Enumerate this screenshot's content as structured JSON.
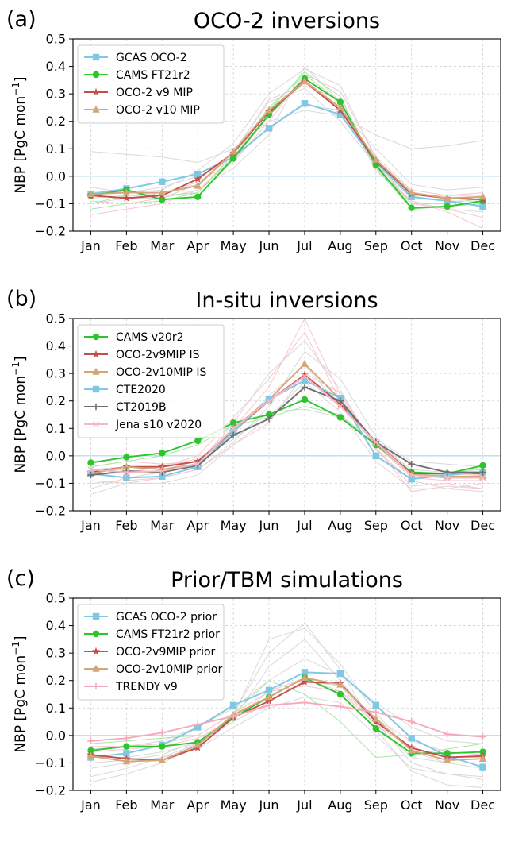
{
  "chart_data": [
    {
      "panel_label": "(a)",
      "type": "line",
      "title": "OCO-2 inversions",
      "ylabel": "NBP [PgC mon",
      "ylabel_sup": "−1",
      "ylabel_end": "]",
      "categories": [
        "Jan",
        "Feb",
        "Mar",
        "Apr",
        "May",
        "Jun",
        "Jul",
        "Aug",
        "Sep",
        "Oct",
        "Nov",
        "Dec"
      ],
      "ylim": [
        -0.2,
        0.5
      ],
      "yticks": [
        "−0.2",
        "−0.1",
        "0.0",
        "0.1",
        "0.2",
        "0.3",
        "0.4",
        "0.5"
      ],
      "grid": true,
      "legend_position": "top-left",
      "series": [
        {
          "name": "GCAS OCO-2",
          "color": "#7ec8e3",
          "marker": "square",
          "values": [
            -0.065,
            -0.045,
            -0.02,
            0.008,
            0.07,
            0.175,
            0.265,
            0.225,
            0.05,
            -0.075,
            -0.09,
            -0.11
          ]
        },
        {
          "name": "CAMS FT21r2",
          "color": "#2ec42e",
          "marker": "circle",
          "values": [
            -0.07,
            -0.05,
            -0.085,
            -0.075,
            0.065,
            0.225,
            0.355,
            0.27,
            0.04,
            -0.115,
            -0.11,
            -0.09
          ]
        },
        {
          "name": "OCO-2 v9 MIP",
          "color": "#c44e4e",
          "marker": "star",
          "values": [
            -0.07,
            -0.08,
            -0.07,
            -0.01,
            0.085,
            0.235,
            0.345,
            0.24,
            0.055,
            -0.065,
            -0.08,
            -0.085
          ]
        },
        {
          "name": "OCO-2 v10 MIP",
          "color": "#d2a679",
          "marker": "triangle",
          "values": [
            -0.065,
            -0.06,
            -0.06,
            -0.035,
            0.09,
            0.24,
            0.345,
            0.25,
            0.06,
            -0.06,
            -0.08,
            -0.075
          ]
        }
      ],
      "background_lines": [
        {
          "color": "#d9d9d9",
          "values": [
            0.09,
            0.08,
            0.07,
            0.05,
            0.1,
            0.2,
            0.24,
            0.22,
            0.15,
            0.1,
            0.11,
            0.13
          ]
        },
        {
          "color": "#d9d9d9",
          "values": [
            -0.1,
            -0.08,
            -0.08,
            -0.05,
            0.03,
            0.15,
            0.4,
            0.27,
            0.02,
            -0.09,
            -0.12,
            -0.13
          ]
        },
        {
          "color": "#d9d9d9",
          "values": [
            -0.04,
            -0.06,
            -0.05,
            0.02,
            0.12,
            0.3,
            0.39,
            0.33,
            0.06,
            -0.07,
            -0.07,
            -0.07
          ]
        },
        {
          "color": "#f7c6cf",
          "values": [
            -0.09,
            -0.1,
            -0.08,
            -0.03,
            0.08,
            0.28,
            0.33,
            0.28,
            0.03,
            -0.1,
            -0.12,
            -0.15
          ]
        },
        {
          "color": "#f7c6cf",
          "values": [
            -0.06,
            -0.05,
            -0.07,
            -0.02,
            0.05,
            0.2,
            0.37,
            0.31,
            0.07,
            -0.05,
            -0.07,
            -0.06
          ]
        },
        {
          "color": "#a8e6a8",
          "values": [
            -0.12,
            -0.1,
            -0.09,
            -0.06,
            0.07,
            0.24,
            0.38,
            0.29,
            0.03,
            -0.12,
            -0.11,
            -0.1
          ]
        },
        {
          "color": "#a8e6a8",
          "values": [
            -0.1,
            -0.07,
            -0.07,
            -0.06,
            0.08,
            0.25,
            0.37,
            0.27,
            0.05,
            -0.1,
            -0.1,
            -0.08
          ]
        },
        {
          "color": "#d9d9d9",
          "values": [
            -0.06,
            -0.06,
            -0.04,
            0.0,
            0.06,
            0.18,
            0.26,
            0.24,
            0.1,
            -0.03,
            -0.05,
            -0.04
          ]
        },
        {
          "color": "#f7c6cf",
          "values": [
            -0.14,
            -0.12,
            -0.1,
            -0.05,
            0.06,
            0.22,
            0.35,
            0.25,
            0.03,
            -0.09,
            -0.13,
            -0.19
          ]
        },
        {
          "color": "#d9d9d9",
          "values": [
            -0.08,
            -0.07,
            -0.06,
            -0.03,
            0.09,
            0.27,
            0.32,
            0.2,
            0.04,
            -0.08,
            -0.09,
            -0.09
          ]
        }
      ]
    },
    {
      "panel_label": "(b)",
      "type": "line",
      "title": "In-situ inversions",
      "ylabel": "NBP [PgC mon",
      "ylabel_sup": "−1",
      "ylabel_end": "]",
      "categories": [
        "Jan",
        "Feb",
        "Mar",
        "Apr",
        "May",
        "Jun",
        "Jul",
        "Aug",
        "Sep",
        "Oct",
        "Nov",
        "Dec"
      ],
      "ylim": [
        -0.2,
        0.5
      ],
      "yticks": [
        "−0.2",
        "−0.1",
        "0.0",
        "0.1",
        "0.2",
        "0.3",
        "0.4",
        "0.5"
      ],
      "grid": true,
      "legend_position": "top-left",
      "series": [
        {
          "name": "CAMS v20r2",
          "color": "#2ec42e",
          "marker": "circle",
          "values": [
            -0.025,
            -0.005,
            0.01,
            0.055,
            0.12,
            0.15,
            0.205,
            0.14,
            0.04,
            -0.06,
            -0.065,
            -0.035
          ]
        },
        {
          "name": "OCO-2v9MIP IS",
          "color": "#c44e4e",
          "marker": "star",
          "values": [
            -0.06,
            -0.04,
            -0.04,
            -0.02,
            0.09,
            0.2,
            0.295,
            0.19,
            0.05,
            -0.065,
            -0.065,
            -0.065
          ]
        },
        {
          "name": "OCO-2v10MIP IS",
          "color": "#d2a679",
          "marker": "triangle",
          "values": [
            -0.065,
            -0.04,
            -0.05,
            -0.03,
            0.1,
            0.205,
            0.335,
            0.205,
            0.045,
            -0.07,
            -0.075,
            -0.075
          ]
        },
        {
          "name": "CTE2020",
          "color": "#7ec8e3",
          "marker": "square",
          "values": [
            -0.065,
            -0.08,
            -0.075,
            -0.04,
            0.09,
            0.205,
            0.275,
            0.21,
            0.0,
            -0.085,
            -0.07,
            -0.06
          ]
        },
        {
          "name": "CT2019B",
          "color": "#707070",
          "marker": "plus",
          "values": [
            -0.07,
            -0.055,
            -0.06,
            -0.035,
            0.075,
            0.135,
            0.25,
            0.2,
            0.05,
            -0.03,
            -0.06,
            -0.06
          ]
        },
        {
          "name": "Jena s10 v2020",
          "color": "#f7b6c2",
          "marker": "x",
          "values": [
            -0.05,
            -0.06,
            -0.055,
            -0.03,
            0.1,
            0.2,
            0.29,
            0.18,
            0.05,
            -0.07,
            -0.08,
            -0.08
          ]
        }
      ],
      "background_lines": [
        {
          "color": "#d9d9d9",
          "values": [
            -0.12,
            -0.08,
            -0.06,
            -0.03,
            0.12,
            0.3,
            0.42,
            0.24,
            0.02,
            -0.09,
            -0.12,
            -0.1
          ]
        },
        {
          "color": "#d9d9d9",
          "values": [
            -0.06,
            -0.05,
            -0.04,
            -0.01,
            0.06,
            0.16,
            0.17,
            0.14,
            0.06,
            -0.02,
            -0.03,
            -0.04
          ]
        },
        {
          "color": "#f7c6cf",
          "values": [
            -0.04,
            -0.02,
            -0.03,
            -0.02,
            0.1,
            0.25,
            0.5,
            0.22,
            0.03,
            -0.11,
            -0.1,
            -0.12
          ]
        },
        {
          "color": "#f7c6cf",
          "values": [
            -0.07,
            -0.06,
            -0.04,
            0.0,
            0.14,
            0.28,
            0.45,
            0.2,
            0.04,
            -0.08,
            -0.09,
            -0.09
          ]
        },
        {
          "color": "#d9d9d9",
          "values": [
            -0.1,
            -0.09,
            -0.08,
            -0.05,
            0.05,
            0.18,
            0.38,
            0.28,
            0.07,
            -0.06,
            -0.08,
            -0.07
          ]
        },
        {
          "color": "#f7c6cf",
          "values": [
            -0.09,
            -0.1,
            -0.08,
            -0.05,
            0.04,
            0.12,
            0.3,
            0.23,
            0.03,
            -0.13,
            -0.11,
            -0.12
          ]
        },
        {
          "color": "#d9d9d9",
          "values": [
            -0.05,
            -0.04,
            -0.05,
            -0.02,
            0.08,
            0.22,
            0.33,
            0.18,
            0.05,
            -0.05,
            -0.06,
            -0.05
          ]
        },
        {
          "color": "#a8e6a8",
          "values": [
            -0.04,
            -0.02,
            0.0,
            0.04,
            0.11,
            0.14,
            0.18,
            0.15,
            0.04,
            -0.07,
            -0.07,
            -0.04
          ]
        },
        {
          "color": "#d9d9d9",
          "values": [
            -0.14,
            -0.1,
            -0.1,
            -0.07,
            0.04,
            0.14,
            0.27,
            0.16,
            -0.02,
            -0.12,
            -0.12,
            -0.13
          ]
        }
      ]
    },
    {
      "panel_label": "(c)",
      "type": "line",
      "title": "Prior/TBM simulations",
      "ylabel": "NBP [PgC mon",
      "ylabel_sup": "−1",
      "ylabel_end": "]",
      "categories": [
        "Jan",
        "Feb",
        "Mar",
        "Apr",
        "May",
        "Jun",
        "Jul",
        "Aug",
        "Sep",
        "Oct",
        "Nov",
        "Dec"
      ],
      "ylim": [
        -0.2,
        0.5
      ],
      "yticks": [
        "−0.2",
        "−0.1",
        "0.0",
        "0.1",
        "0.2",
        "0.3",
        "0.4",
        "0.5"
      ],
      "grid": true,
      "legend_position": "top-left",
      "series": [
        {
          "name": "GCAS OCO-2 prior",
          "color": "#7ec8e3",
          "marker": "square",
          "values": [
            -0.08,
            -0.065,
            -0.035,
            0.03,
            0.11,
            0.165,
            0.23,
            0.225,
            0.11,
            -0.01,
            -0.075,
            -0.115
          ]
        },
        {
          "name": "CAMS FT21r2 prior",
          "color": "#2ec42e",
          "marker": "circle",
          "values": [
            -0.055,
            -0.04,
            -0.04,
            -0.025,
            0.065,
            0.14,
            0.21,
            0.15,
            0.025,
            -0.065,
            -0.065,
            -0.06
          ]
        },
        {
          "name": "OCO-2v9MIP prior",
          "color": "#c44e4e",
          "marker": "star",
          "values": [
            -0.07,
            -0.085,
            -0.09,
            -0.045,
            0.065,
            0.125,
            0.195,
            0.19,
            0.05,
            -0.045,
            -0.08,
            -0.075
          ]
        },
        {
          "name": "OCO-2v10MIP prior",
          "color": "#d2a679",
          "marker": "triangle",
          "values": [
            -0.075,
            -0.095,
            -0.09,
            -0.035,
            0.075,
            0.14,
            0.21,
            0.185,
            0.06,
            -0.055,
            -0.09,
            -0.085
          ]
        },
        {
          "name": "TRENDY v9",
          "color": "#f7a8b8",
          "marker": "plus",
          "values": [
            -0.02,
            -0.01,
            0.01,
            0.04,
            0.07,
            0.11,
            0.12,
            0.105,
            0.085,
            0.05,
            0.005,
            -0.005
          ]
        }
      ],
      "background_lines": [
        {
          "color": "#d9d9d9",
          "values": [
            -0.17,
            -0.14,
            -0.1,
            -0.04,
            0.08,
            0.3,
            0.41,
            0.24,
            0.02,
            -0.13,
            -0.18,
            -0.19
          ]
        },
        {
          "color": "#d9d9d9",
          "values": [
            -0.15,
            -0.12,
            -0.08,
            -0.03,
            0.06,
            0.25,
            0.35,
            0.2,
            0.05,
            -0.1,
            -0.14,
            -0.16
          ]
        },
        {
          "color": "#d9d9d9",
          "values": [
            -0.05,
            -0.04,
            -0.02,
            0.03,
            0.1,
            0.2,
            0.28,
            0.22,
            0.12,
            0.03,
            -0.02,
            -0.03
          ]
        },
        {
          "color": "#d9d9d9",
          "values": [
            -0.1,
            -0.09,
            -0.07,
            -0.02,
            0.07,
            0.35,
            0.39,
            0.26,
            0.08,
            -0.06,
            -0.1,
            -0.12
          ]
        },
        {
          "color": "#a8e6a8",
          "values": [
            -0.03,
            -0.02,
            -0.01,
            0.0,
            0.08,
            0.2,
            0.15,
            0.05,
            -0.08,
            -0.07,
            -0.05,
            -0.03
          ]
        },
        {
          "color": "#f7c6cf",
          "values": [
            -0.06,
            -0.05,
            -0.04,
            -0.01,
            0.06,
            0.16,
            0.18,
            0.16,
            0.06,
            -0.02,
            -0.06,
            -0.07
          ]
        },
        {
          "color": "#d9d9d9",
          "values": [
            -0.08,
            -0.08,
            -0.06,
            -0.03,
            0.05,
            0.12,
            0.2,
            0.18,
            0.04,
            -0.08,
            -0.1,
            -0.1
          ]
        },
        {
          "color": "#f7c6cf",
          "values": [
            -0.04,
            -0.04,
            -0.03,
            0.0,
            0.08,
            0.16,
            0.21,
            0.16,
            0.04,
            -0.05,
            -0.08,
            -0.08
          ]
        },
        {
          "color": "#d9d9d9",
          "values": [
            -0.12,
            -0.1,
            -0.08,
            -0.05,
            0.03,
            0.1,
            0.14,
            0.12,
            0.0,
            -0.12,
            -0.14,
            -0.15
          ]
        }
      ]
    }
  ]
}
